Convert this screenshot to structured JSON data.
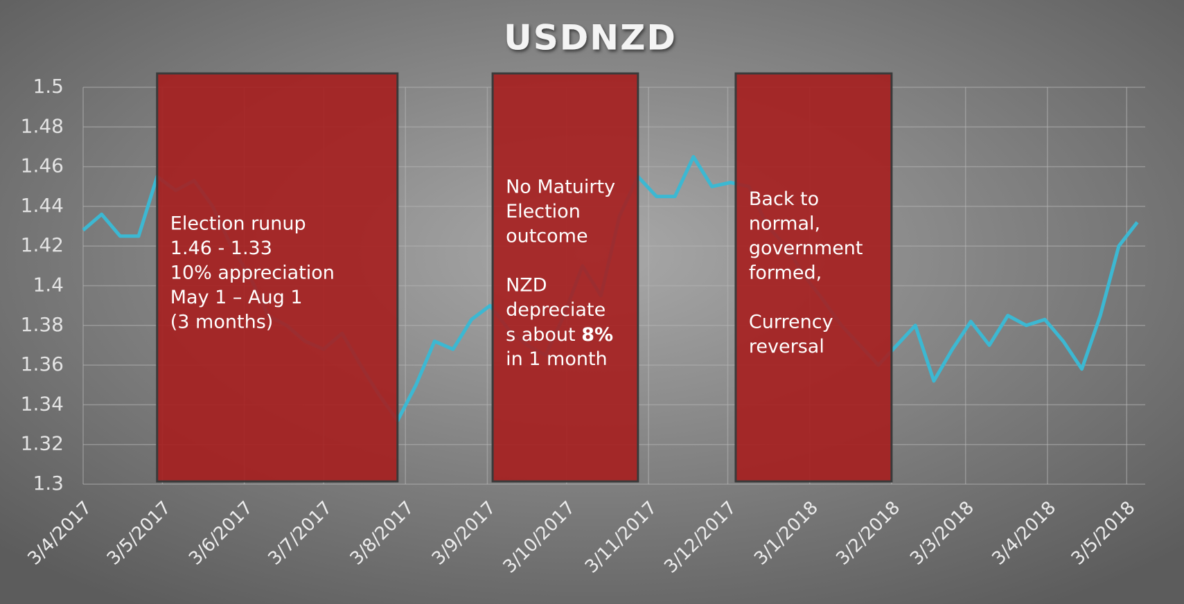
{
  "chart_data": {
    "type": "line",
    "title": "USDNZD",
    "color": "#3cb8d2",
    "grid": true,
    "x": [
      "2017-04-03",
      "2017-04-10",
      "2017-04-17",
      "2017-04-24",
      "2017-05-01",
      "2017-05-08",
      "2017-05-15",
      "2017-05-22",
      "2017-05-29",
      "2017-06-05",
      "2017-06-12",
      "2017-06-19",
      "2017-06-26",
      "2017-07-03",
      "2017-07-10",
      "2017-07-17",
      "2017-07-24",
      "2017-07-31",
      "2017-08-07",
      "2017-08-14",
      "2017-08-21",
      "2017-08-28",
      "2017-09-04",
      "2017-09-11",
      "2017-09-18",
      "2017-09-25",
      "2017-10-02",
      "2017-10-09",
      "2017-10-16",
      "2017-10-23",
      "2017-10-30",
      "2017-11-06",
      "2017-11-13",
      "2017-11-20",
      "2017-11-27",
      "2017-12-04",
      "2017-12-11",
      "2017-12-18",
      "2017-12-25",
      "2018-01-01",
      "2018-01-08",
      "2018-01-15",
      "2018-01-22",
      "2018-01-29",
      "2018-02-05",
      "2018-02-12",
      "2018-02-19",
      "2018-02-26",
      "2018-03-05",
      "2018-03-12",
      "2018-03-19",
      "2018-03-26",
      "2018-04-02",
      "2018-04-09",
      "2018-04-16",
      "2018-04-23",
      "2018-04-30",
      "2018-05-07"
    ],
    "values": [
      1.428,
      1.436,
      1.425,
      1.425,
      1.455,
      1.448,
      1.453,
      1.44,
      1.42,
      1.405,
      1.385,
      1.38,
      1.372,
      1.368,
      1.376,
      1.36,
      1.345,
      1.332,
      1.35,
      1.372,
      1.368,
      1.383,
      1.39,
      1.378,
      1.37,
      1.365,
      1.385,
      1.41,
      1.395,
      1.435,
      1.455,
      1.445,
      1.445,
      1.465,
      1.45,
      1.452,
      1.45,
      1.43,
      1.42,
      1.405,
      1.393,
      1.38,
      1.37,
      1.36,
      1.37,
      1.38,
      1.352,
      1.368,
      1.382,
      1.37,
      1.385,
      1.38,
      1.383,
      1.372,
      1.358,
      1.385,
      1.42,
      1.432
    ],
    "xlim": [
      "2017-04-03",
      "2018-05-10"
    ],
    "xticks": [
      {
        "value": "2017-04-03",
        "label": "3/4/2017"
      },
      {
        "value": "2017-05-03",
        "label": "3/5/2017"
      },
      {
        "value": "2017-06-03",
        "label": "3/6/2017"
      },
      {
        "value": "2017-07-03",
        "label": "3/7/2017"
      },
      {
        "value": "2017-08-03",
        "label": "3/8/2017"
      },
      {
        "value": "2017-09-03",
        "label": "3/9/2017"
      },
      {
        "value": "2017-10-03",
        "label": "3/10/2017"
      },
      {
        "value": "2017-11-03",
        "label": "3/11/2017"
      },
      {
        "value": "2017-12-03",
        "label": "3/12/2017"
      },
      {
        "value": "2018-01-03",
        "label": "3/1/2018"
      },
      {
        "value": "2018-02-03",
        "label": "3/2/2018"
      },
      {
        "value": "2018-03-03",
        "label": "3/3/2018"
      },
      {
        "value": "2018-04-03",
        "label": "3/4/2018"
      },
      {
        "value": "2018-05-03",
        "label": "3/5/2018"
      }
    ],
    "ylim": [
      1.3,
      1.5
    ],
    "yticks": [
      1.3,
      1.32,
      1.34,
      1.36,
      1.38,
      1.4,
      1.42,
      1.44,
      1.46,
      1.48,
      1.5
    ],
    "annotations": [
      {
        "x": [
          "2017-05-01",
          "2017-07-31"
        ],
        "paragraphs": [
          [
            "Election runup",
            "1.46  - 1.33",
            "10% appreciation",
            "May 1 – Aug 1",
            "(3 months)"
          ]
        ]
      },
      {
        "x": [
          "2017-09-05",
          "2017-10-30"
        ],
        "paragraphs": [
          [
            "No Matuirty",
            "Election",
            "outcome"
          ],
          [
            "NZD",
            "depreciate",
            [
              {
                "text": "s about "
              },
              {
                "text": "8%",
                "bold": true
              }
            ],
            "in 1 month"
          ]
        ]
      },
      {
        "x": [
          "2017-12-06",
          "2018-02-03"
        ],
        "paragraphs": [
          [
            "Back to",
            "normal,",
            "government",
            "formed,"
          ],
          [
            "Currency",
            "reversal"
          ]
        ]
      }
    ]
  }
}
